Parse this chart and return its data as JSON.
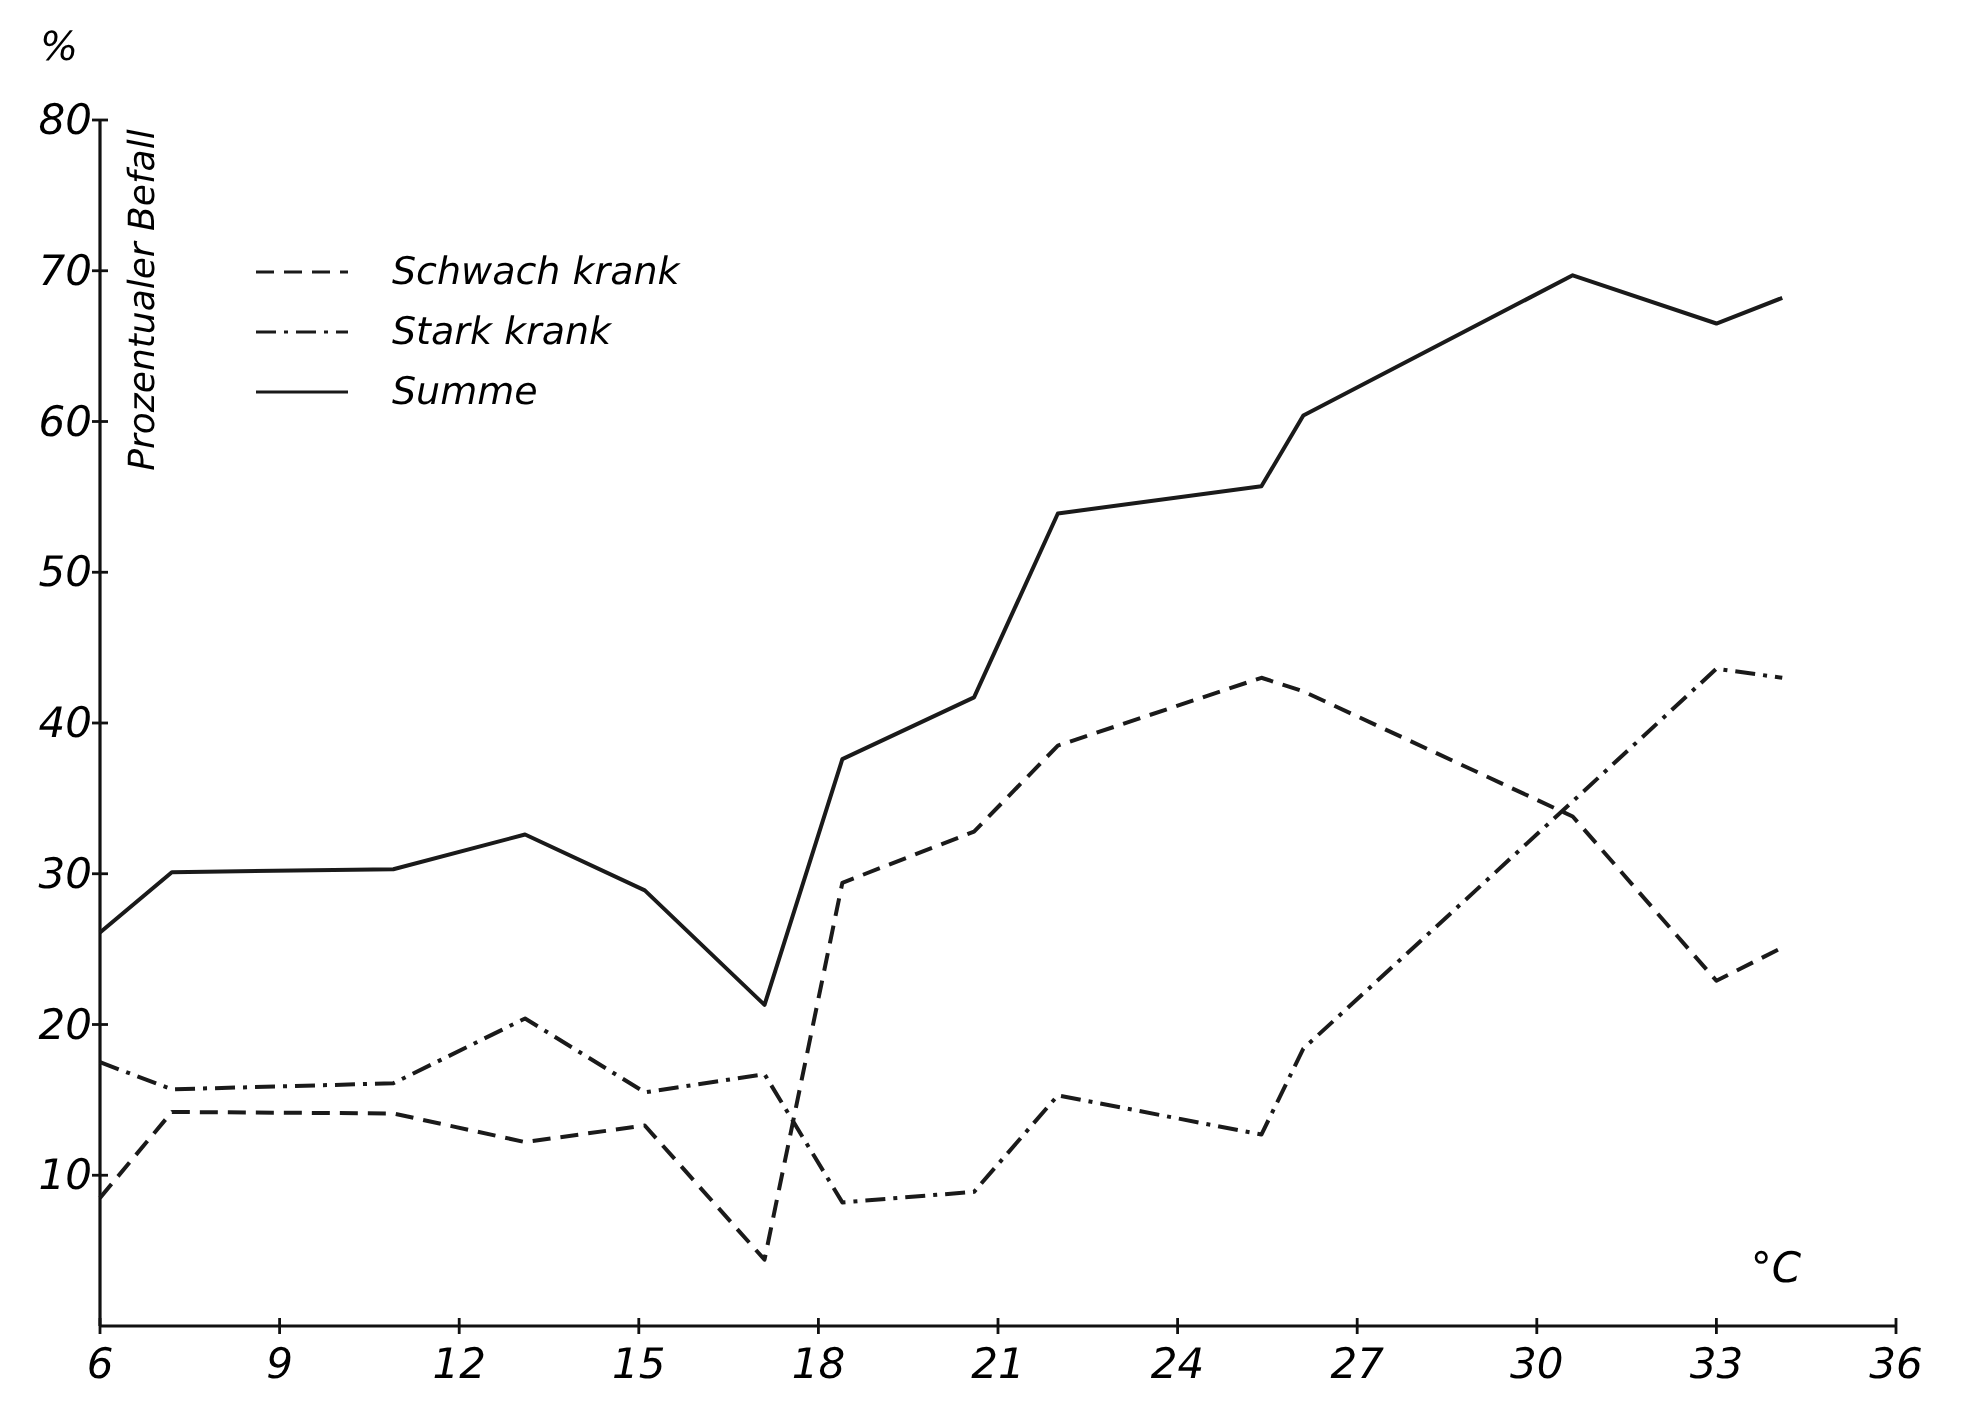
{
  "chart_data": {
    "type": "line",
    "ylabel": "Prozentualer Befall",
    "xlabel": "°C",
    "annotations": [
      "%"
    ],
    "x": [
      6,
      7.2,
      10.9,
      13.1,
      15.1,
      17.1,
      18.4,
      20.6,
      22.0,
      25.4,
      26.1,
      30.6,
      33.0,
      34.1
    ],
    "series": [
      {
        "name": "Schwach krank",
        "color": "#1a1a1a",
        "line_style": "dashed",
        "values": [
          8.5,
          14.2,
          14.1,
          12.2,
          13.3,
          4.4,
          29.4,
          32.8,
          38.5,
          43.0,
          42.1,
          33.8,
          22.9,
          25.1
        ]
      },
      {
        "name": "Stark krank",
        "color": "#1a1a1a",
        "line_style": "dashdot",
        "values": [
          17.5,
          15.7,
          16.1,
          20.4,
          15.5,
          16.7,
          8.2,
          8.9,
          15.3,
          12.7,
          18.4,
          34.8,
          43.6,
          43.0
        ]
      },
      {
        "name": "Summe",
        "color": "#1a1a1a",
        "line_style": "solid",
        "values": [
          26.1,
          30.1,
          30.3,
          32.6,
          28.9,
          21.3,
          37.6,
          41.7,
          53.9,
          55.7,
          60.4,
          69.7,
          66.5,
          68.2
        ]
      }
    ],
    "xlim": [
      6,
      36
    ],
    "xticks": [
      6,
      9,
      12,
      15,
      18,
      21,
      24,
      27,
      30,
      33,
      36
    ],
    "ylim": [
      0,
      80
    ],
    "yticks": [
      10,
      20,
      30,
      40,
      50,
      60,
      70,
      80
    ],
    "grid": false,
    "legend": "top left",
    "marker": "none"
  }
}
